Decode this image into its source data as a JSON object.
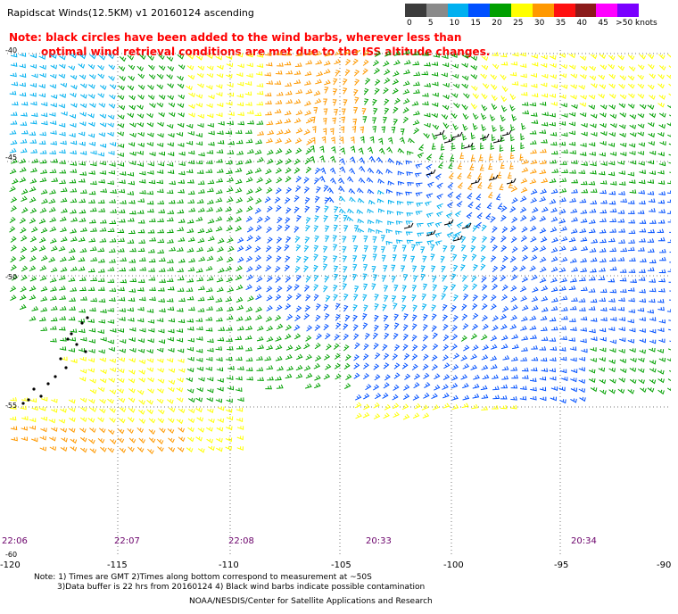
{
  "title": "Rapidscat Winds(12.5KM) v1 20160124 ascending",
  "note": {
    "line1": "Note: black circles have been added to the wind barbs, wherever less than",
    "line2": "optimal wind retrieval conditions are met due to the ISS altitude changes.",
    "color": "#ff0000"
  },
  "color_scale": {
    "unit_label": ">50 knots",
    "ticks": [
      "0",
      "5",
      "10",
      "15",
      "20",
      "25",
      "30",
      "35",
      "40",
      "45"
    ],
    "colors": [
      "#3c3c3c",
      "#8a8a8a",
      "#00b0f0",
      "#0050ff",
      "#00a000",
      "#ffff00",
      "#ff9900",
      "#ff1010",
      "#8b1a1a",
      "#ff00ff",
      "#7a00ff"
    ]
  },
  "lat_labels": [
    "-40",
    "-45",
    "-50",
    "-55",
    "-60"
  ],
  "lon_labels": [
    "-120",
    "-115",
    "-110",
    "-105",
    "-100",
    "-95",
    "-90"
  ],
  "time_labels": [
    "22:06",
    "22:07",
    "22:08",
    "20:33",
    "20:34"
  ],
  "footnotes": {
    "line1": "Note: 1) Times are GMT 2)Times along bottom correspond to measurement at ~50S",
    "line2": "3)Data buffer is 22 hrs from 20160124 4) Black wind barbs indicate possible contamination"
  },
  "credit": "NOAA/NESDIS/Center for Satellite Applications and Research"
}
